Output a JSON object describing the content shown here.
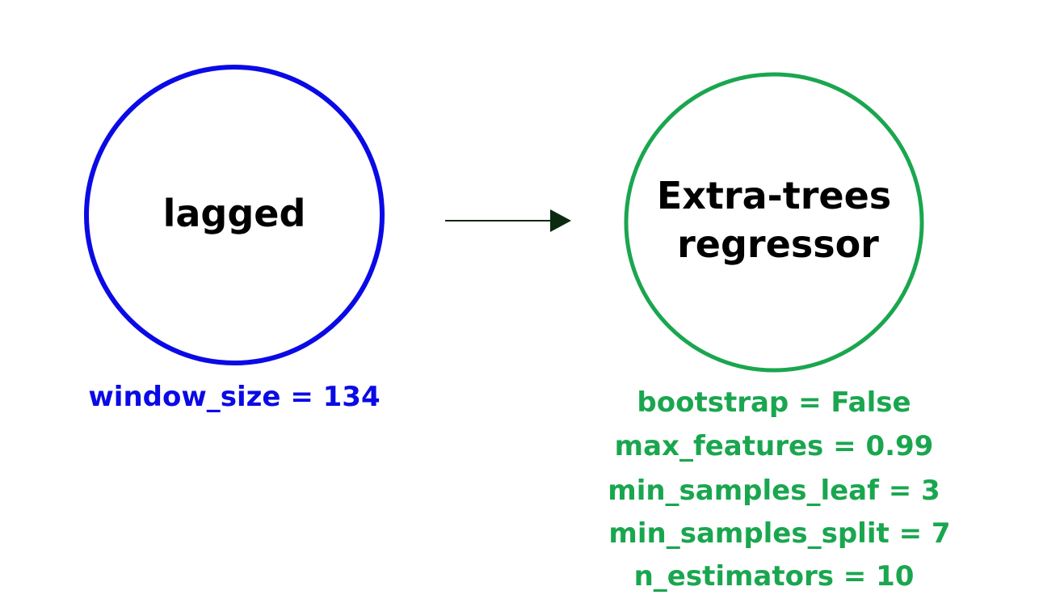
{
  "nodes": [
    {
      "id": "lagged",
      "title_lines": [
        "lagged"
      ],
      "color": "#0a0ae6",
      "params": [
        "window_size = 134"
      ]
    },
    {
      "id": "extra-trees",
      "title_lines": [
        "Extra-trees",
        "regressor"
      ],
      "color": "#1aa64f",
      "params": [
        "bootstrap = False",
        "max_features = 0.99",
        "min_samples_leaf = 3",
        "min_samples_split = 7",
        "n_estimators = 10"
      ]
    }
  ],
  "edge": {
    "from": "lagged",
    "to": "extra-trees",
    "color": "#0b2a12"
  }
}
